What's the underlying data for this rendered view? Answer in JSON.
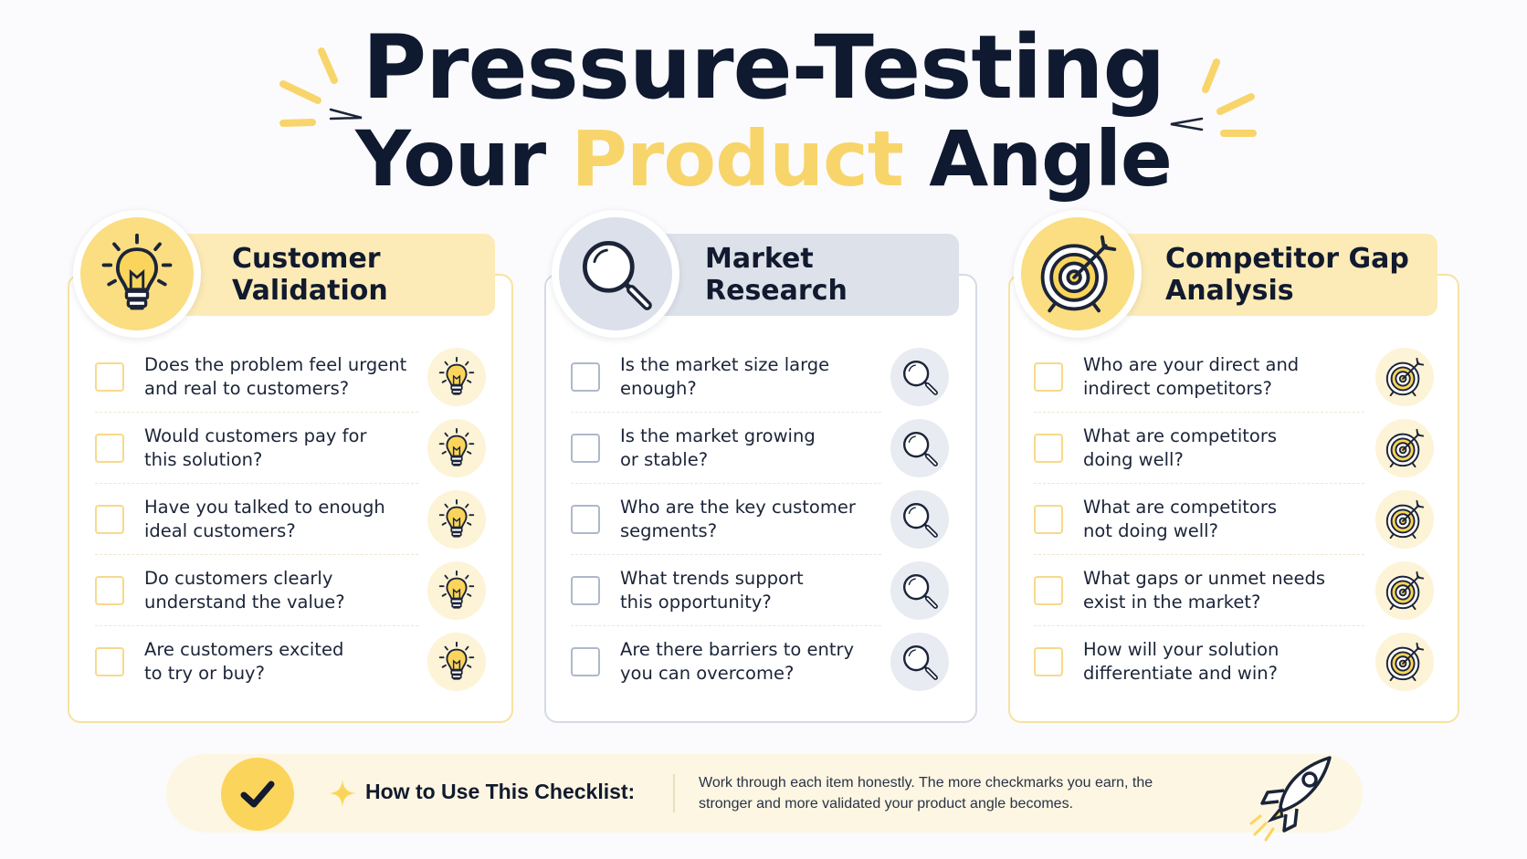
{
  "title": {
    "line1": "Pressure-Testing",
    "line2_before": "Your ",
    "line2_accent": "Product",
    "line2_after": " Angle"
  },
  "columns": [
    {
      "title": "Customer\nValidation",
      "icon": "lightbulb-icon",
      "item_icon": "lightbulb-icon",
      "accent": "#fbdd82",
      "items": [
        "Does the problem feel urgent\nand real to customers?",
        "Would customers pay for\nthis solution?",
        "Have you talked to enough\nideal customers?",
        "Do customers clearly\nunderstand the value?",
        "Are customers excited\nto try or buy?"
      ]
    },
    {
      "title": "Market\nResearch",
      "icon": "magnifier-icon",
      "item_icon": "magnifier-icon",
      "accent": "#dbe0ea",
      "items": [
        "Is the market size large\nenough?",
        "Is the market growing\nor stable?",
        "Who are the key customer\nsegments?",
        "What trends support\nthis opportunity?",
        "Are there barriers to entry\nyou can overcome?"
      ]
    },
    {
      "title": "Competitor Gap\nAnalysis",
      "icon": "target-icon",
      "item_icon": "target-icon",
      "accent": "#fbdd82",
      "items": [
        "Who are your direct and\nindirect competitors?",
        "What are competitors\ndoing well?",
        "What are competitors\nnot doing well?",
        "What gaps or unmet needs\nexist in the market?",
        "How will your solution\ndifferentiate and win?"
      ]
    }
  ],
  "footer": {
    "label": "How to Use This Checklist:",
    "text": "Work through each item honestly. The more checkmarks you earn, the stronger and more validated your product angle becomes.",
    "icons": [
      "checkmark-icon",
      "sparkle-icon",
      "rocket-icon"
    ]
  }
}
